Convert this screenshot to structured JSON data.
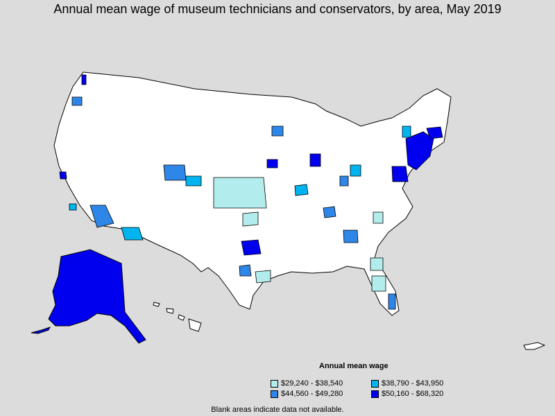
{
  "title": "Annual mean wage of museum technicians and conservators, by area, May 2019",
  "legend": {
    "title": "Annual mean wage",
    "items": [
      {
        "label": "$29,240 - $38,540",
        "color": "#b3ecec"
      },
      {
        "label": "$38,790 - $43,950",
        "color": "#00b4f0"
      },
      {
        "label": "$44,560 - $49,280",
        "color": "#2d86e8"
      },
      {
        "label": "$50,160 - $68,320",
        "color": "#0000ee"
      }
    ]
  },
  "footnote": "Blank areas indicate data not available.",
  "colors": {
    "background": "#dcdcdc",
    "no_data": "#ffffff",
    "border": "#000000"
  }
}
